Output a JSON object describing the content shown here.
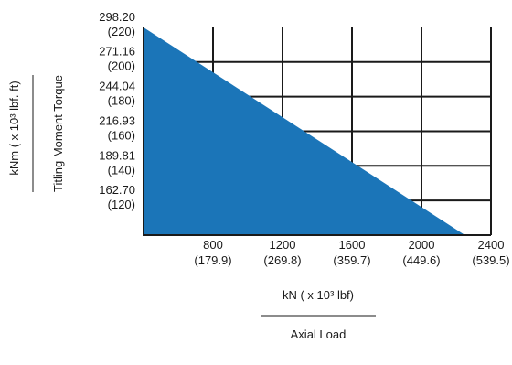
{
  "chart_data": {
    "type": "area",
    "title": "",
    "x_axis": {
      "range": [
        400,
        2400
      ],
      "ticks": [
        800,
        1200,
        1600,
        2000,
        2400
      ],
      "tick_labels": [
        "800",
        "1200",
        "1600",
        "2000",
        "2400"
      ],
      "tick_sublabels": [
        "(179.9)",
        "(269.8)",
        "(359.7)",
        "(449.6)",
        "(539.5)"
      ],
      "label_top": "kN ( x 10³ lbf)",
      "label_bottom": "Axial Load"
    },
    "y_axis": {
      "range": [
        135.58,
        298.2
      ],
      "ticks": [
        298.2,
        271.16,
        244.04,
        216.93,
        189.81,
        162.7
      ],
      "tick_labels": [
        "298.20",
        "271.16",
        "244.04",
        "216.93",
        "189.81",
        "162.70"
      ],
      "tick_sublabels": [
        "(220)",
        "(200)",
        "(180)",
        "(160)",
        "(140)",
        "(120)"
      ],
      "label_outer": "kNm ( x 10³ lbf. ft)",
      "label_inner": "Titling Moment Torque"
    },
    "grid": true,
    "series": [
      {
        "points": [
          [
            400,
            298.2
          ],
          [
            2250,
            135.58
          ]
        ],
        "fill_color": "#1b75b8"
      }
    ]
  }
}
